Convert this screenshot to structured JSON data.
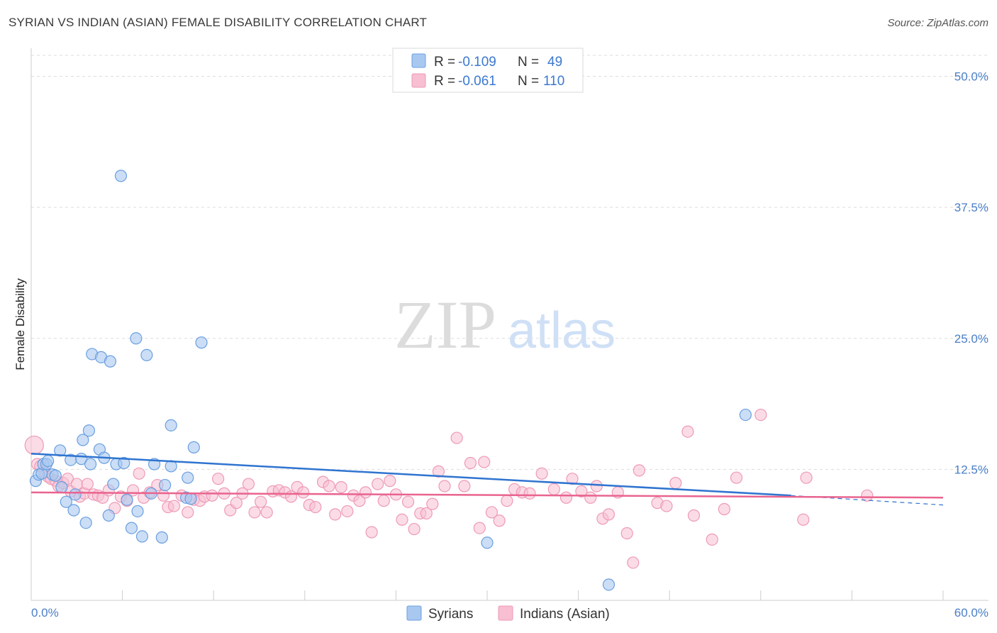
{
  "title": "SYRIAN VS INDIAN (ASIAN) FEMALE DISABILITY CORRELATION CHART",
  "source": "Source: ZipAtlas.com",
  "watermark": {
    "zip": "ZIP",
    "atlas": "atlas"
  },
  "colors": {
    "syrian_fill": "#a9c8f0",
    "syrian_stroke": "#6a9fe0",
    "syrian_line": "#2f74d0",
    "indian_fill": "#f7bfd1",
    "indian_stroke": "#ee9ab5",
    "indian_line": "#e9648f",
    "tick_text": "#4a7fc8",
    "grid": "#dddddd"
  },
  "legend": {
    "rows": [
      {
        "r_label": "R =",
        "r_value": "-0.109",
        "n_label": "N =",
        "n_value": "49"
      },
      {
        "r_label": "R =",
        "r_value": "-0.061",
        "n_label": "N =",
        "n_value": "110"
      }
    ]
  },
  "chart_data": {
    "type": "scatter",
    "title": "SYRIAN VS INDIAN (ASIAN) FEMALE DISABILITY CORRELATION CHART",
    "xlabel": "",
    "ylabel": "Female Disability",
    "xlim": [
      0,
      60
    ],
    "ylim": [
      0,
      52
    ],
    "x_tick_labels": [
      "0.0%",
      "60.0%"
    ],
    "y_ticks": [
      12.5,
      25.0,
      37.5,
      50.0
    ],
    "y_tick_labels": [
      "12.5%",
      "25.0%",
      "37.5%",
      "50.0%"
    ],
    "grid": true,
    "series": [
      {
        "name": "Syrians",
        "trend": {
          "x0": 0,
          "y0": 14.0,
          "x1": 50,
          "y1": 10.0,
          "dashed_to_x": 60,
          "dashed_y1": 9.1
        },
        "points": [
          [
            0.3,
            11.4
          ],
          [
            0.5,
            12.0
          ],
          [
            0.7,
            12.1
          ],
          [
            0.8,
            13.0
          ],
          [
            1.0,
            13.0
          ],
          [
            1.1,
            13.3
          ],
          [
            1.4,
            12.0
          ],
          [
            1.6,
            11.9
          ],
          [
            1.9,
            14.3
          ],
          [
            2.0,
            10.8
          ],
          [
            2.3,
            9.4
          ],
          [
            2.6,
            13.4
          ],
          [
            2.8,
            8.6
          ],
          [
            2.9,
            10.1
          ],
          [
            3.3,
            13.5
          ],
          [
            3.4,
            15.3
          ],
          [
            3.6,
            7.4
          ],
          [
            3.8,
            16.2
          ],
          [
            3.9,
            13.0
          ],
          [
            4.0,
            23.5
          ],
          [
            4.5,
            14.4
          ],
          [
            4.6,
            23.2
          ],
          [
            4.8,
            13.6
          ],
          [
            5.1,
            8.1
          ],
          [
            5.2,
            22.8
          ],
          [
            5.4,
            11.1
          ],
          [
            5.6,
            13.0
          ],
          [
            5.9,
            40.5
          ],
          [
            6.1,
            13.1
          ],
          [
            6.3,
            9.6
          ],
          [
            6.6,
            6.9
          ],
          [
            6.9,
            25.0
          ],
          [
            7.0,
            8.5
          ],
          [
            7.3,
            6.1
          ],
          [
            7.6,
            23.4
          ],
          [
            7.9,
            10.2
          ],
          [
            8.1,
            13.0
          ],
          [
            8.6,
            6.0
          ],
          [
            8.8,
            11.0
          ],
          [
            9.2,
            16.7
          ],
          [
            9.2,
            12.8
          ],
          [
            10.2,
            9.8
          ],
          [
            10.3,
            11.7
          ],
          [
            10.5,
            9.7
          ],
          [
            10.7,
            14.6
          ],
          [
            11.2,
            24.6
          ],
          [
            30.0,
            5.5
          ],
          [
            47.0,
            17.7
          ],
          [
            38.0,
            1.5
          ]
        ]
      },
      {
        "name": "Indians (Asian)",
        "trend": {
          "x0": 0,
          "y0": 10.3,
          "x1": 60,
          "y1": 9.8
        },
        "points": [
          [
            0.2,
            14.8
          ],
          [
            0.4,
            13.0
          ],
          [
            0.6,
            12.8
          ],
          [
            0.9,
            12.2
          ],
          [
            1.1,
            11.8
          ],
          [
            1.3,
            11.6
          ],
          [
            1.6,
            11.4
          ],
          [
            1.8,
            10.9
          ],
          [
            2.1,
            11.2
          ],
          [
            2.4,
            11.6
          ],
          [
            2.6,
            10.4
          ],
          [
            3.0,
            11.1
          ],
          [
            3.2,
            9.9
          ],
          [
            3.5,
            10.2
          ],
          [
            3.7,
            11.1
          ],
          [
            4.1,
            10.1
          ],
          [
            4.4,
            10.0
          ],
          [
            4.7,
            9.8
          ],
          [
            5.1,
            10.5
          ],
          [
            5.5,
            8.8
          ],
          [
            5.9,
            9.9
          ],
          [
            6.3,
            9.5
          ],
          [
            6.7,
            10.5
          ],
          [
            7.1,
            12.1
          ],
          [
            7.4,
            9.8
          ],
          [
            7.8,
            10.3
          ],
          [
            8.3,
            11.0
          ],
          [
            8.7,
            10.0
          ],
          [
            9.0,
            8.9
          ],
          [
            9.4,
            9.0
          ],
          [
            9.9,
            10.0
          ],
          [
            10.3,
            8.4
          ],
          [
            10.7,
            9.6
          ],
          [
            11.1,
            9.5
          ],
          [
            11.4,
            9.9
          ],
          [
            11.9,
            10.0
          ],
          [
            12.3,
            11.6
          ],
          [
            12.7,
            10.2
          ],
          [
            13.1,
            8.6
          ],
          [
            13.5,
            9.3
          ],
          [
            13.9,
            10.2
          ],
          [
            14.3,
            11.1
          ],
          [
            14.7,
            8.4
          ],
          [
            15.1,
            9.4
          ],
          [
            15.5,
            8.4
          ],
          [
            15.9,
            10.4
          ],
          [
            16.3,
            10.5
          ],
          [
            16.7,
            10.3
          ],
          [
            17.1,
            9.9
          ],
          [
            17.5,
            10.8
          ],
          [
            17.9,
            10.3
          ],
          [
            18.3,
            9.1
          ],
          [
            18.7,
            8.9
          ],
          [
            19.2,
            11.3
          ],
          [
            19.6,
            10.9
          ],
          [
            20.0,
            8.2
          ],
          [
            20.4,
            10.8
          ],
          [
            20.8,
            8.5
          ],
          [
            21.2,
            10.0
          ],
          [
            21.6,
            9.5
          ],
          [
            22.0,
            10.3
          ],
          [
            22.4,
            6.5
          ],
          [
            22.8,
            11.1
          ],
          [
            23.2,
            9.5
          ],
          [
            23.6,
            11.4
          ],
          [
            24.0,
            10.1
          ],
          [
            24.4,
            7.7
          ],
          [
            24.8,
            9.4
          ],
          [
            25.2,
            6.8
          ],
          [
            25.6,
            8.3
          ],
          [
            26.0,
            8.3
          ],
          [
            26.4,
            9.2
          ],
          [
            26.8,
            12.3
          ],
          [
            27.2,
            10.9
          ],
          [
            28.0,
            15.5
          ],
          [
            28.5,
            10.9
          ],
          [
            28.9,
            13.1
          ],
          [
            29.5,
            6.9
          ],
          [
            29.8,
            13.2
          ],
          [
            30.3,
            8.4
          ],
          [
            30.8,
            7.6
          ],
          [
            31.3,
            9.5
          ],
          [
            31.8,
            10.6
          ],
          [
            32.3,
            10.3
          ],
          [
            32.8,
            10.2
          ],
          [
            33.6,
            12.1
          ],
          [
            34.4,
            10.6
          ],
          [
            35.2,
            9.8
          ],
          [
            35.6,
            11.6
          ],
          [
            36.2,
            10.4
          ],
          [
            36.8,
            9.8
          ],
          [
            37.2,
            10.9
          ],
          [
            37.6,
            7.8
          ],
          [
            38.0,
            8.2
          ],
          [
            38.6,
            10.3
          ],
          [
            39.2,
            6.4
          ],
          [
            39.6,
            3.6
          ],
          [
            40.0,
            12.4
          ],
          [
            41.2,
            9.3
          ],
          [
            41.8,
            9.0
          ],
          [
            42.4,
            11.2
          ],
          [
            43.2,
            16.1
          ],
          [
            43.6,
            8.1
          ],
          [
            44.8,
            5.8
          ],
          [
            45.6,
            8.7
          ],
          [
            46.4,
            11.7
          ],
          [
            48.0,
            17.7
          ],
          [
            51.0,
            11.7
          ],
          [
            50.8,
            7.7
          ],
          [
            55.0,
            10.0
          ]
        ]
      }
    ]
  },
  "bottom_legend": [
    {
      "label": "Syrians"
    },
    {
      "label": "Indians (Asian)"
    }
  ]
}
